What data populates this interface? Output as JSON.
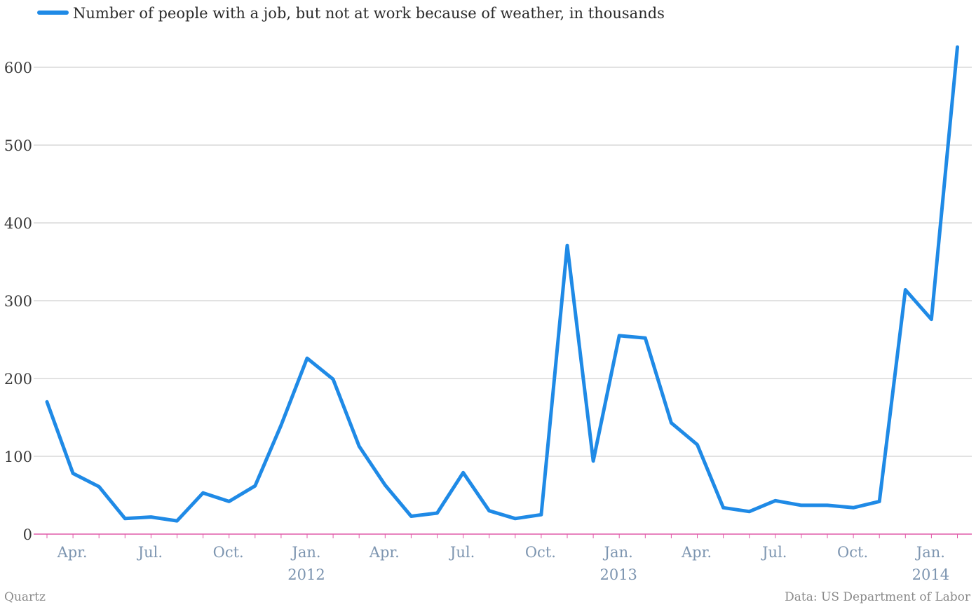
{
  "chart_data": {
    "type": "line",
    "title": "",
    "xlabel": "",
    "ylabel": "",
    "ylim": [
      0,
      650
    ],
    "yticks": [
      0,
      100,
      200,
      300,
      400,
      500,
      600
    ],
    "grid": true,
    "legend_placement": "top-left",
    "series": [
      {
        "name": "Number of people with a job, but not at work because of weather, in thousands",
        "color": "#1f8ae6",
        "x": [
          "2011-03",
          "2011-04",
          "2011-05",
          "2011-06",
          "2011-07",
          "2011-08",
          "2011-09",
          "2011-10",
          "2011-11",
          "2011-12",
          "2012-01",
          "2012-02",
          "2012-03",
          "2012-04",
          "2012-05",
          "2012-06",
          "2012-07",
          "2012-08",
          "2012-09",
          "2012-10",
          "2012-11",
          "2012-12",
          "2013-01",
          "2013-02",
          "2013-03",
          "2013-04",
          "2013-05",
          "2013-06",
          "2013-07",
          "2013-08",
          "2013-09",
          "2013-10",
          "2013-11",
          "2013-12",
          "2014-01",
          "2014-02"
        ],
        "values": [
          170,
          78,
          61,
          20,
          22,
          17,
          53,
          42,
          62,
          140,
          226,
          199,
          113,
          63,
          23,
          27,
          79,
          30,
          20,
          25,
          371,
          94,
          255,
          252,
          143,
          115,
          34,
          29,
          43,
          37,
          37,
          34,
          42,
          314,
          276,
          626
        ]
      }
    ],
    "x_tick_labels": [
      {
        "label": "Apr.",
        "month": "2011-04"
      },
      {
        "label": "Jul.",
        "month": "2011-07"
      },
      {
        "label": "Oct.",
        "month": "2011-10"
      },
      {
        "label": "Jan.",
        "month": "2012-01",
        "year": "2012"
      },
      {
        "label": "Apr.",
        "month": "2012-04"
      },
      {
        "label": "Jul.",
        "month": "2012-07"
      },
      {
        "label": "Oct.",
        "month": "2012-10"
      },
      {
        "label": "Jan.",
        "month": "2013-01",
        "year": "2013"
      },
      {
        "label": "Apr.",
        "month": "2013-04"
      },
      {
        "label": "Jul.",
        "month": "2013-07"
      },
      {
        "label": "Oct.",
        "month": "2013-10"
      },
      {
        "label": "Jan.",
        "month": "2014-01",
        "year": "2014"
      }
    ]
  },
  "footer": {
    "source_left": "Quartz",
    "source_right": "Data: US Department of Labor"
  }
}
